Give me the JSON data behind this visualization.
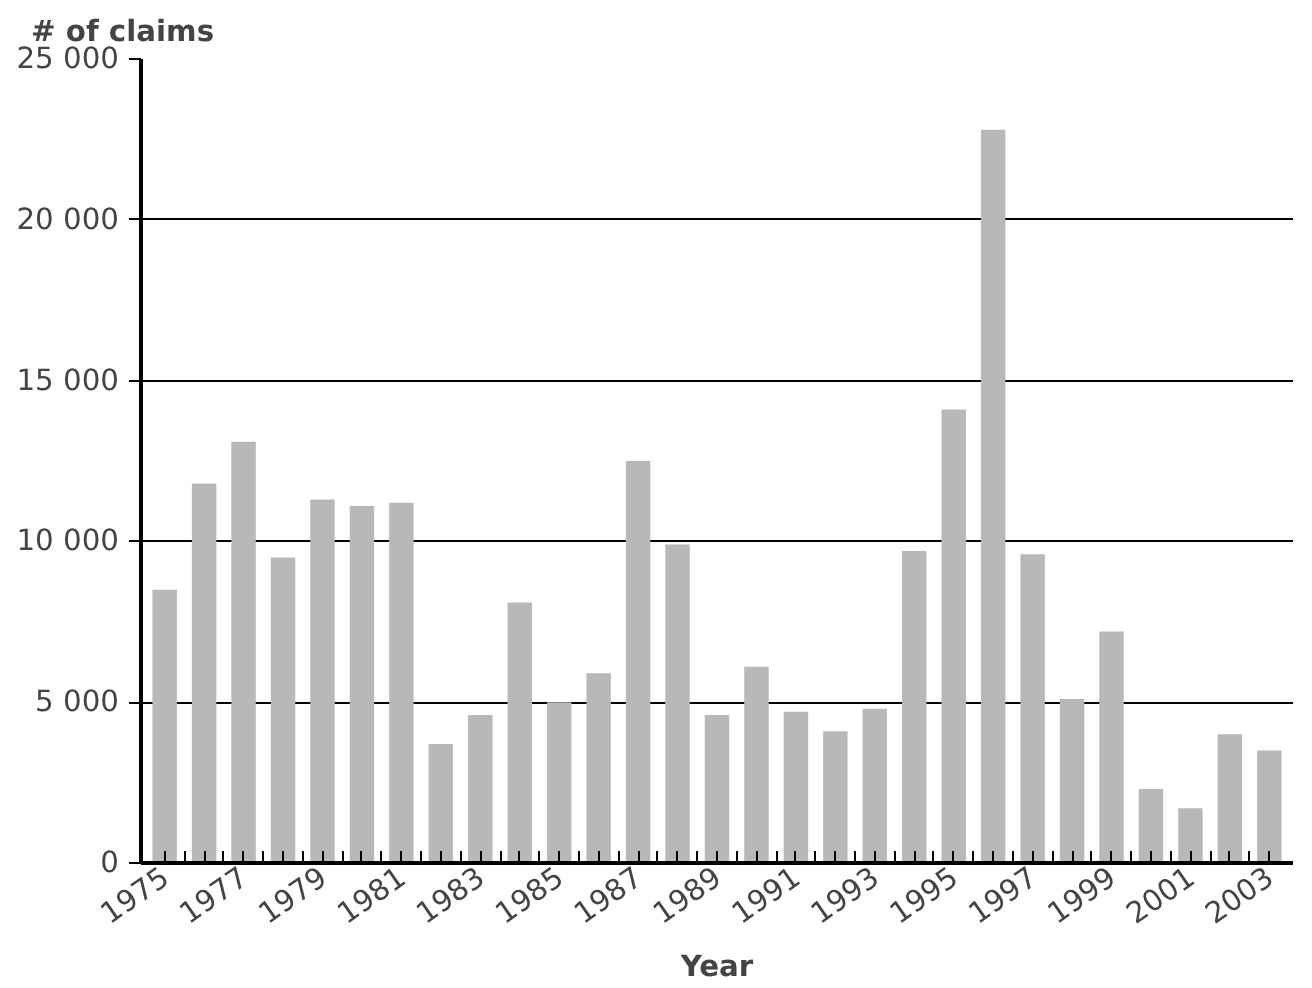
{
  "chart_data": {
    "type": "bar",
    "ylabel": "# of claims",
    "xlabel": "Year",
    "categories": [
      "1975",
      null,
      "1977",
      null,
      "1979",
      null,
      "1981",
      null,
      "1983",
      null,
      "1985",
      null,
      "1987",
      null,
      "1989",
      null,
      "1991",
      null,
      "1993",
      null,
      "1995",
      null,
      "1997",
      null,
      "1999",
      null,
      "2001",
      null,
      "2003"
    ],
    "values": [
      8500,
      11800,
      13100,
      9500,
      11300,
      11100,
      11200,
      3700,
      4600,
      8100,
      5000,
      5900,
      12500,
      9900,
      4600,
      6100,
      4700,
      4100,
      4800,
      9700,
      14100,
      22800,
      9600,
      5100,
      7200,
      2300,
      1700,
      4000,
      3500
    ],
    "color": "#b8b8b8",
    "ylim": [
      0,
      25000
    ],
    "yticks": [
      0,
      {
        "value": 5000,
        "label": "5 000"
      },
      {
        "value": 10000,
        "label": "10 000"
      },
      {
        "value": 15000,
        "label": "15 000"
      },
      {
        "value": 20000,
        "label": "20 000"
      },
      {
        "value": 25000,
        "label": "25 000"
      }
    ],
    "grid": "y"
  }
}
